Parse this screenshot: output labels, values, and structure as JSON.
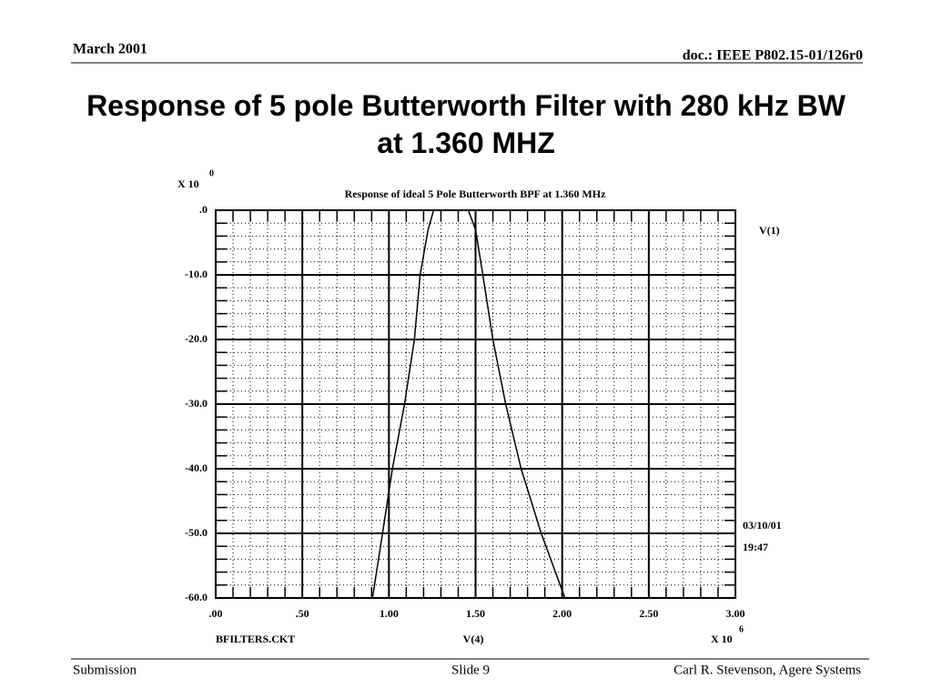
{
  "header": {
    "date": "March 2001",
    "doc": "doc.: IEEE P802.15-01/126r0"
  },
  "title": "Response of 5 pole Butterworth Filter with 280 kHz BW at 1.360 MHZ",
  "footer": {
    "left": "Submission",
    "center": "Slide 9",
    "right": "Carl R. Stevenson, Agere Systems"
  },
  "chart_data": {
    "type": "line",
    "title": "Response of  ideal  5 Pole Butterworth BPF at 1.360 MHz",
    "y_multiplier": "X 10",
    "y_exponent": "0",
    "x_multiplier": "X 10",
    "x_exponent": "6",
    "x_label": "V(4)",
    "file": "BFILTERS.CKT",
    "date": "03/10/01",
    "time": "19:47",
    "x": [
      0.905,
      0.963,
      1.02,
      1.09,
      1.147,
      1.18,
      1.226,
      1.258,
      1.3,
      1.35,
      1.4,
      1.458,
      1.5,
      1.542,
      1.6,
      1.674,
      1.763,
      1.879,
      2.016
    ],
    "series": [
      {
        "name": "V(1)",
        "color": "#000000",
        "values": [
          -60,
          -50,
          -40,
          -30,
          -20,
          -10,
          -3,
          0,
          0,
          0,
          0,
          0,
          -3,
          -10,
          -20,
          -30,
          -40,
          -50,
          -60
        ]
      }
    ],
    "xlim": [
      0,
      3
    ],
    "ylim": [
      -60,
      0
    ],
    "xticks": [
      {
        "value": 0,
        "label": ".00"
      },
      {
        "value": 0.5,
        "label": ".50"
      },
      {
        "value": 1,
        "label": "1.00"
      },
      {
        "value": 1.5,
        "label": "1.50"
      },
      {
        "value": 2,
        "label": "2.00"
      },
      {
        "value": 2.5,
        "label": "2.50"
      },
      {
        "value": 3,
        "label": "3.00"
      }
    ],
    "yticks": [
      {
        "value": 0,
        "label": ".0"
      },
      {
        "value": -10,
        "label": "-10.0"
      },
      {
        "value": -20,
        "label": "-20.0"
      },
      {
        "value": -30,
        "label": "-30.0"
      },
      {
        "value": -40,
        "label": "-40.0"
      },
      {
        "value": -50,
        "label": "-50.0"
      },
      {
        "value": -60,
        "label": "-60.0"
      }
    ],
    "grid": true
  }
}
